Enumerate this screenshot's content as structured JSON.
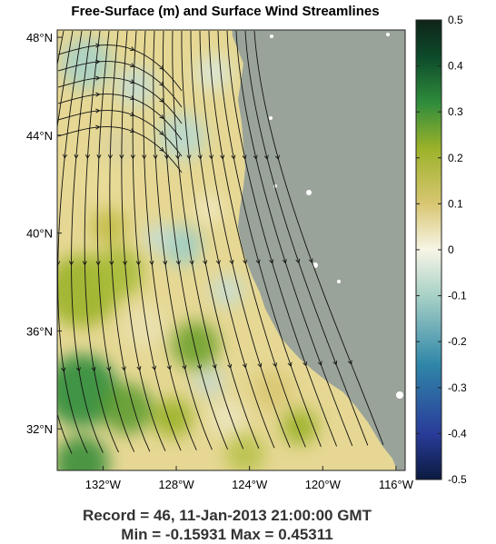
{
  "chart_data": {
    "type": "heatmap",
    "title": "Free-Surface (m) and Surface Wind Streamlines",
    "x_ticks": [
      "132°W",
      "128°W",
      "124°W",
      "120°W",
      "116°W"
    ],
    "y_ticks": [
      "48°N",
      "44°N",
      "40°N",
      "36°N",
      "32°N"
    ],
    "xlim": [
      -134.5,
      -115.5
    ],
    "ylim": [
      30.3,
      48.3
    ],
    "colorbar": {
      "range": [
        -0.5,
        0.5
      ],
      "ticks": [
        "0.5",
        "0.4",
        "0.3",
        "0.2",
        "0.1",
        "0",
        "-0.1",
        "-0.2",
        "-0.3",
        "-0.4",
        "-0.5"
      ]
    },
    "record_line": "Record = 46,  11-Jan-2013 21:00:00 GMT",
    "minmax_line": "Min = -0.15931  Max = 0.45311",
    "colors": {
      "land": "#9aa39a",
      "streamline": "#111111",
      "cmap": [
        "#0b1a3f",
        "#2a3c9a",
        "#2f86a8",
        "#a8d1c6",
        "#f7f5e6",
        "#d8c672",
        "#9cb22a",
        "#2f8c3c",
        "#0d4a2a",
        "#0f2418"
      ]
    }
  }
}
